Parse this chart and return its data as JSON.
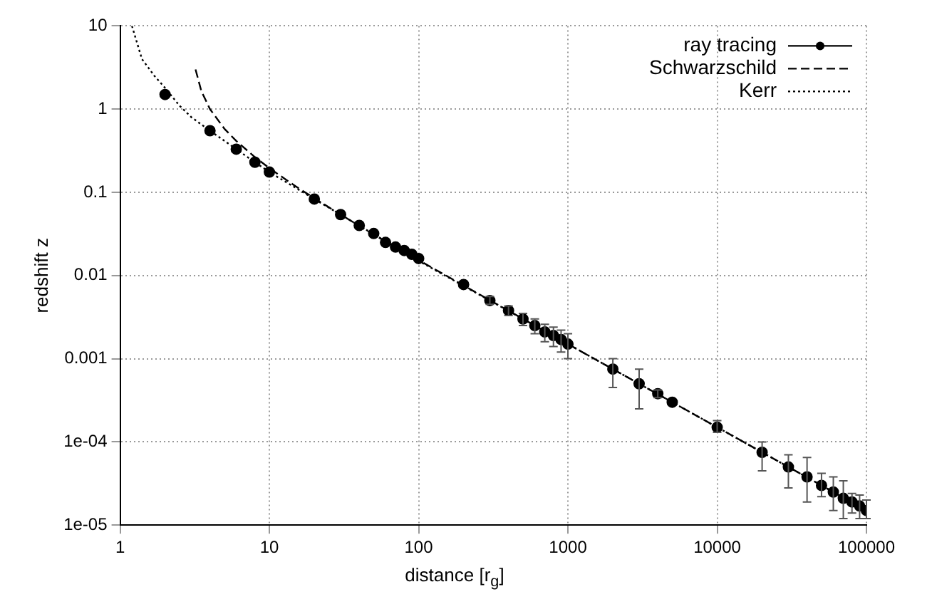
{
  "chart_data": {
    "type": "scatter",
    "xlabel": "distance [r$_{g}$]",
    "ylabel": "redshift z",
    "log": "xy",
    "grid": true,
    "legend": "top right",
    "xlim": [
      1,
      100000
    ],
    "xticks": [
      1,
      10,
      100,
      1000,
      10000,
      100000
    ],
    "ylim": [
      1e-05,
      10
    ],
    "yticks": [
      {
        "value": 1e-05,
        "label": "1e-05"
      },
      {
        "value": 0.0001,
        "label": "1e-04"
      },
      0.001,
      0.01,
      0.1,
      1,
      10
    ],
    "series": [
      {
        "name": "ray tracing",
        "type": "scatter",
        "marker": "circle",
        "color": "#000000",
        "x": [
          2,
          4,
          6,
          8,
          10,
          20,
          30,
          40,
          50,
          60,
          70,
          80,
          90,
          100,
          200,
          300,
          400,
          500,
          600,
          700,
          800,
          900,
          1000,
          2000,
          3000,
          4000,
          5000,
          10000,
          20000,
          30000,
          40000,
          50000,
          60000,
          70000,
          80000,
          90000,
          100000
        ],
        "values": [
          1.5,
          0.55,
          0.33,
          0.23,
          0.175,
          0.083,
          0.054,
          0.04,
          0.032,
          0.025,
          0.022,
          0.02,
          0.018,
          0.016,
          0.0078,
          0.005,
          0.0038,
          0.003,
          0.0025,
          0.0021,
          0.0019,
          0.0017,
          0.0015,
          0.00075,
          0.0005,
          0.00038,
          0.0003,
          0.00015,
          7.5e-05,
          5e-05,
          3.8e-05,
          3e-05,
          2.5e-05,
          2.1e-05,
          1.9e-05,
          1.7e-05,
          1.5e-05
        ],
        "errors": [
          null,
          null,
          null,
          null,
          null,
          null,
          null,
          null,
          null,
          null,
          null,
          null,
          null,
          null,
          null,
          [
            0.0045,
            0.0056
          ],
          [
            0.0033,
            0.0043
          ],
          [
            0.0025,
            0.0035
          ],
          [
            0.002,
            0.003
          ],
          [
            0.0016,
            0.0026
          ],
          [
            0.0014,
            0.0024
          ],
          [
            0.0012,
            0.0022
          ],
          [
            0.001,
            0.002
          ],
          [
            0.00045,
            0.001
          ],
          [
            0.00025,
            0.00075
          ],
          [
            0.00034,
            0.00042
          ],
          null,
          [
            0.00013,
            0.00018
          ],
          [
            4.5e-05,
            0.0001
          ],
          [
            2.8e-05,
            7e-05
          ],
          [
            1.9e-05,
            6.5e-05
          ],
          [
            2.2e-05,
            4.2e-05
          ],
          [
            1.5e-05,
            3.8e-05
          ],
          [
            1.2e-05,
            3.4e-05
          ],
          [
            1.4e-05,
            2.4e-05
          ],
          [
            1.2e-05,
            2.3e-05
          ],
          [
            1.2e-05,
            2e-05
          ]
        ]
      },
      {
        "name": "Schwarzschild",
        "type": "line",
        "marker": "none",
        "line_style": "dashed",
        "color": "#000000",
        "x": [
          3.2,
          3.5,
          4,
          5,
          6,
          8,
          10,
          15,
          20,
          30,
          50,
          100,
          300,
          1000,
          10000,
          100000
        ],
        "values": [
          3,
          1.65,
          1,
          0.58,
          0.414,
          0.265,
          0.195,
          0.118,
          0.085,
          0.054,
          0.031,
          0.0153,
          0.00504,
          0.0015,
          0.00015,
          1.5e-05
        ]
      },
      {
        "name": "Kerr",
        "type": "line",
        "marker": "none",
        "line_style": "dotted",
        "color": "#000000",
        "x": [
          1.2,
          1.4,
          1.7,
          2,
          2.5,
          3,
          4,
          6,
          8,
          10,
          20,
          100,
          1000,
          10000,
          100000
        ],
        "values": [
          10,
          4,
          2.5,
          1.8,
          1.1,
          0.8,
          0.55,
          0.33,
          0.23,
          0.175,
          0.083,
          0.015,
          0.0015,
          0.00015,
          1.5e-05
        ]
      }
    ]
  }
}
